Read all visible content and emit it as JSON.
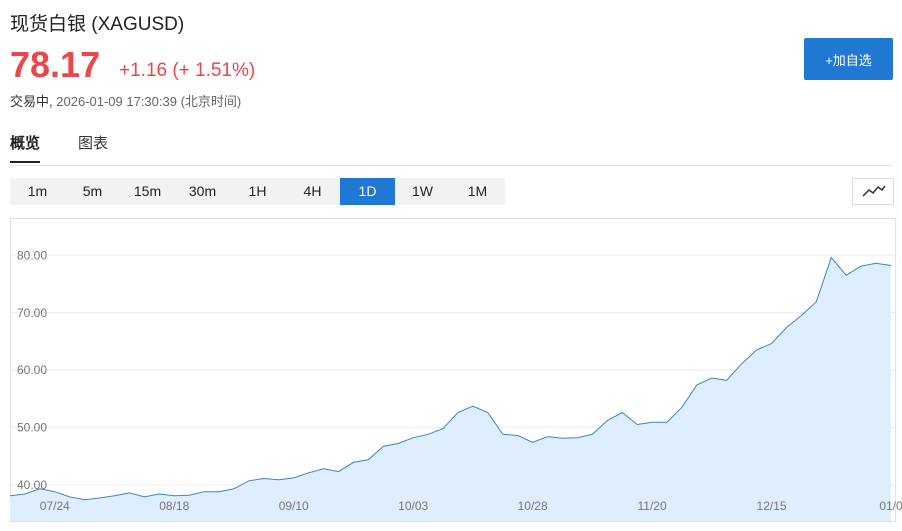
{
  "header": {
    "title": "现货白银 (XAGUSD)",
    "price": "78.17",
    "change": "+1.16",
    "change_pct": "(+ 1.51%)",
    "status": "交易中,",
    "timestamp": "2026-01-09 17:30:39",
    "timezone": "(北京时间)",
    "add_button": "+加自选"
  },
  "tabs": [
    "概览",
    "图表"
  ],
  "intervals": [
    "1m",
    "5m",
    "15m",
    "30m",
    "1H",
    "4H",
    "1D",
    "1W",
    "1M"
  ],
  "active_interval": "1D",
  "chart_data": {
    "type": "area",
    "categories": [
      null,
      null,
      null,
      "07/24",
      null,
      null,
      null,
      null,
      null,
      null,
      null,
      "08/18",
      null,
      null,
      null,
      null,
      null,
      null,
      null,
      "09/10",
      null,
      null,
      null,
      null,
      null,
      null,
      null,
      "10/03",
      null,
      null,
      null,
      null,
      null,
      null,
      null,
      "10/28",
      null,
      null,
      null,
      null,
      null,
      null,
      null,
      "11/20",
      null,
      null,
      null,
      null,
      null,
      null,
      null,
      "12/15",
      null,
      null,
      null,
      null,
      null,
      null,
      null,
      "01/0"
    ],
    "series": [
      {
        "color": "#3b86c6",
        "values": [
          38.1,
          38.4,
          39.3,
          38.8,
          37.9,
          37.4,
          37.7,
          38.1,
          38.6,
          37.9,
          38.4,
          38.1,
          38.2,
          38.8,
          38.8,
          39.3,
          40.7,
          41.1,
          40.9,
          41.2,
          42.1,
          42.8,
          42.3,
          43.9,
          44.4,
          46.7,
          47.2,
          48.2,
          48.8,
          49.8,
          52.6,
          53.7,
          52.6,
          48.8,
          48.6,
          47.4,
          48.4,
          48.1,
          48.2,
          48.8,
          51.2,
          52.6,
          50.5,
          50.9,
          50.9,
          53.5,
          57.4,
          58.6,
          58.2,
          61.1,
          63.5,
          64.6,
          67.4,
          69.5,
          71.9,
          79.6,
          76.5,
          78.1,
          78.6,
          78.2
        ]
      }
    ],
    "ylim": [
      33.7,
      86.3
    ],
    "yticks": [
      {
        "value": 40,
        "label": "40.00"
      },
      {
        "value": 50,
        "label": "50.00"
      },
      {
        "value": 60,
        "label": "60.00"
      },
      {
        "value": 70,
        "label": "70.00"
      },
      {
        "value": 80,
        "label": "80.00"
      }
    ],
    "grid": true
  }
}
